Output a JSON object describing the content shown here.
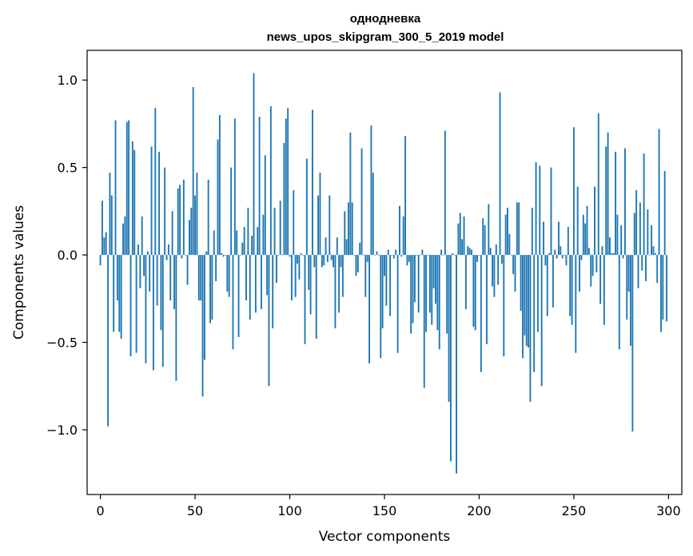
{
  "chart_data": {
    "type": "bar",
    "title": "однодневка",
    "subtitle": "news_upos_skipgram_300_5_2019 model",
    "xlabel": "Vector components",
    "ylabel": "Components values",
    "xlim": [
      -7,
      307
    ],
    "ylim": [
      -1.37,
      1.17
    ],
    "xticks": [
      0,
      50,
      100,
      150,
      200,
      250,
      300
    ],
    "xtick_labels": [
      "0",
      "50",
      "100",
      "150",
      "200",
      "250",
      "300"
    ],
    "yticks": [
      -1.0,
      -0.5,
      0.0,
      0.5,
      1.0
    ],
    "ytick_labels": [
      "−1.0",
      "−0.5",
      "0.0",
      "0.5",
      "1.0"
    ],
    "bar_color": "#1f77b4",
    "grid": false,
    "legend": "none",
    "values": [
      -0.06,
      0.31,
      0.1,
      0.13,
      -0.98,
      0.47,
      0.34,
      -0.44,
      0.77,
      -0.26,
      -0.44,
      -0.48,
      0.18,
      0.22,
      0.76,
      0.77,
      -0.58,
      0.65,
      0.6,
      -0.56,
      0.06,
      -0.19,
      0.22,
      -0.12,
      -0.62,
      0.02,
      -0.21,
      0.62,
      -0.66,
      0.84,
      -0.29,
      0.59,
      -0.43,
      -0.64,
      0.5,
      -0.03,
      0.06,
      -0.26,
      0.25,
      -0.31,
      -0.72,
      0.38,
      0.4,
      -0.02,
      0.43,
      0.0,
      -0.17,
      0.2,
      0.27,
      0.96,
      0.34,
      0.47,
      -0.26,
      -0.26,
      -0.81,
      -0.6,
      0.02,
      0.43,
      -0.39,
      -0.37,
      0.14,
      -0.15,
      0.66,
      0.8,
      0.01,
      -0.01,
      0.0,
      -0.21,
      -0.24,
      0.5,
      -0.54,
      0.78,
      0.14,
      -0.47,
      0.0,
      0.07,
      0.16,
      -0.26,
      0.27,
      -0.37,
      0.11,
      1.04,
      -0.33,
      0.16,
      0.79,
      -0.31,
      0.23,
      0.57,
      -0.23,
      -0.75,
      0.85,
      -0.42,
      0.27,
      -0.16,
      0.0,
      0.31,
      0.0,
      0.64,
      0.78,
      0.84,
      -0.01,
      -0.26,
      0.37,
      -0.24,
      -0.05,
      -0.14,
      0.01,
      0.0,
      -0.51,
      0.55,
      -0.2,
      -0.34,
      0.83,
      -0.07,
      -0.48,
      0.34,
      0.47,
      -0.07,
      -0.06,
      0.1,
      -0.04,
      0.34,
      -0.03,
      -0.07,
      -0.42,
      0.1,
      -0.33,
      -0.07,
      -0.24,
      0.25,
      0.09,
      0.3,
      0.7,
      0.3,
      0.0,
      -0.12,
      -0.1,
      0.07,
      0.61,
      0.0,
      -0.24,
      -0.04,
      -0.62,
      0.74,
      0.47,
      0.0,
      0.02,
      0.0,
      -0.59,
      -0.42,
      -0.12,
      -0.29,
      0.03,
      -0.35,
      0.0,
      -0.02,
      0.03,
      -0.56,
      0.28,
      -0.01,
      0.22,
      0.68,
      -0.06,
      -0.04,
      -0.45,
      -0.39,
      -0.27,
      0.0,
      -0.33,
      0.0,
      0.03,
      -0.76,
      -0.44,
      0.0,
      -0.33,
      -0.4,
      -0.19,
      -0.28,
      -0.43,
      -0.54,
      0.03,
      0.0,
      0.71,
      -0.45,
      -0.84,
      -1.18,
      0.01,
      0.0,
      -1.25,
      0.18,
      0.24,
      0.09,
      0.22,
      -0.31,
      0.05,
      0.04,
      0.03,
      -0.41,
      -0.43,
      -0.04,
      0.0,
      -0.67,
      0.21,
      0.17,
      -0.51,
      0.29,
      0.04,
      -0.18,
      -0.24,
      0.06,
      -0.17,
      0.93,
      -0.05,
      -0.58,
      0.23,
      0.27,
      0.12,
      0.0,
      -0.11,
      -0.21,
      0.3,
      0.3,
      -0.32,
      -0.59,
      -0.46,
      -0.52,
      -0.53,
      -0.84,
      0.27,
      -0.67,
      0.53,
      -0.44,
      0.51,
      -0.75,
      0.19,
      -0.06,
      -0.35,
      0.01,
      0.5,
      -0.3,
      0.03,
      -0.02,
      0.19,
      0.05,
      -0.02,
      0.0,
      -0.06,
      0.16,
      -0.35,
      -0.4,
      0.73,
      -0.56,
      0.39,
      -0.21,
      -0.03,
      0.23,
      0.18,
      0.28,
      0.04,
      -0.18,
      -0.12,
      0.39,
      -0.1,
      0.81,
      -0.28,
      0.05,
      -0.4,
      0.62,
      0.7,
      0.1,
      0.01,
      0.01,
      0.59,
      0.23,
      -0.54,
      0.17,
      -0.02,
      0.61,
      -0.37,
      -0.21,
      -0.52,
      -1.01,
      0.24,
      0.37,
      -0.19,
      0.3,
      -0.09,
      0.58,
      -0.15,
      0.26,
      0.0,
      0.17,
      0.05,
      0.01,
      -0.16,
      0.72,
      -0.44,
      -0.37,
      0.48,
      -0.38
    ]
  }
}
